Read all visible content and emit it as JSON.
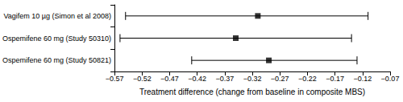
{
  "chart_data": {
    "type": "forest",
    "x_label": "Treatment difference (change from baseline in composite MBS)",
    "categories": [
      "Vagifem 10 µg (Simon et al 2008)",
      "Ospemifene 60 mg (Study 50310)",
      "Ospemifene 60 mg (Study 50821)"
    ],
    "values": [
      -0.31,
      -0.35,
      -0.29
    ],
    "lower": [
      -0.55,
      -0.56,
      -0.43
    ],
    "upper": [
      -0.11,
      -0.14,
      -0.13
    ],
    "color": "#000000",
    "marker": "square",
    "xlim": [
      -0.57,
      -0.07
    ],
    "xticks": [
      {
        "value": -0.57,
        "label": "−0.57"
      },
      {
        "value": -0.52,
        "label": "−0.52"
      },
      {
        "value": -0.47,
        "label": "−0.47"
      },
      {
        "value": -0.42,
        "label": "−0.42"
      },
      {
        "value": -0.37,
        "label": "−0.37"
      },
      {
        "value": -0.32,
        "label": "−0.32"
      },
      {
        "value": -0.27,
        "label": "−0.27"
      },
      {
        "value": -0.22,
        "label": "−0.22"
      },
      {
        "value": -0.17,
        "label": "−0.17"
      },
      {
        "value": -0.12,
        "label": "−0.12"
      },
      {
        "value": -0.07,
        "label": "−0.07"
      }
    ],
    "grid": false
  }
}
